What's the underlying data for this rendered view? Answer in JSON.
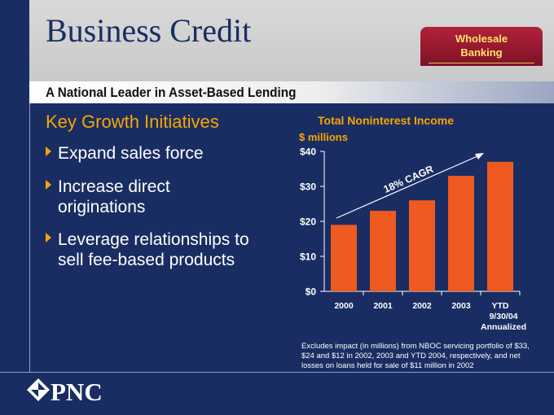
{
  "header": {
    "title": "Business Credit",
    "tab_line1": "Wholesale",
    "tab_line2": "Banking",
    "subtitle": "A National Leader in Asset-Based Lending"
  },
  "left": {
    "heading": "Key Growth Initiatives",
    "bullets": [
      "Expand sales force",
      "Increase direct originations",
      "Leverage relationships to sell fee-based products"
    ]
  },
  "chart_data": {
    "type": "bar",
    "title": "Total Noninterest Income",
    "ylabel": "$ millions",
    "categories": [
      "2000",
      "2001",
      "2002",
      "2003",
      "YTD 9/30/04 Annualized"
    ],
    "category_lines": [
      [
        "2000"
      ],
      [
        "2001"
      ],
      [
        "2002"
      ],
      [
        "2003"
      ],
      [
        "YTD",
        "9/30/04",
        "Annualized"
      ]
    ],
    "values": [
      19,
      23,
      26,
      33,
      37
    ],
    "ylim": [
      0,
      40
    ],
    "yticks": [
      0,
      10,
      20,
      30,
      40
    ],
    "ytick_labels": [
      "$0",
      "$10",
      "$20",
      "$30",
      "$40"
    ],
    "annotation": "18% CAGR",
    "bar_color": "#ee5a1f",
    "grid": false
  },
  "footnote": "Excludes impact (in millions) from NBOC servicing portfolio of $33, $24 and $12 in 2002, 2003 and YTD 2004, respectively, and net losses on loans held for sale of $11 million in 2002",
  "footer": {
    "logo_text": "PNC"
  },
  "colors": {
    "background": "#1a2d63",
    "accent": "#f7a600",
    "tab": "#9b1830"
  }
}
